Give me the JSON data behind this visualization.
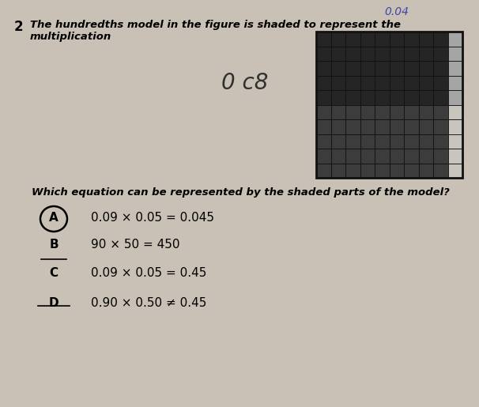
{
  "title_number": "2",
  "title_text": "The hundredths model in the figure is shaded to represent the multiplication",
  "handwritten_above_grid": "0.04",
  "handwritten_middle": "0 c8",
  "question_text": "Which equation can be represented by the shaded parts of the model?",
  "options": [
    {
      "label": "A",
      "text": "0.09 × 0.05 = 0.045",
      "circled": true,
      "underlined": false,
      "struck": false
    },
    {
      "label": "B",
      "text": "90 × 50 = 450",
      "circled": false,
      "underlined": true,
      "struck": false
    },
    {
      "label": "C",
      "text": "0.09 × 0.05 = 0.45",
      "circled": false,
      "underlined": false,
      "struck": false
    },
    {
      "label": "D",
      "text": "0.90 × 0.50 ≠ 0.45",
      "circled": false,
      "underlined": false,
      "struck": true
    }
  ],
  "grid_rows": 10,
  "grid_cols": 10,
  "num_shaded_cols": 9,
  "num_shaded_rows": 5,
  "color_dark1": "#252525",
  "color_dark2": "#3a3a3a",
  "color_light_gray": "#a8a8a8",
  "color_unshaded": "#c8c4be",
  "color_bg": "#c9c1b5",
  "grid_border_color": "#111111"
}
